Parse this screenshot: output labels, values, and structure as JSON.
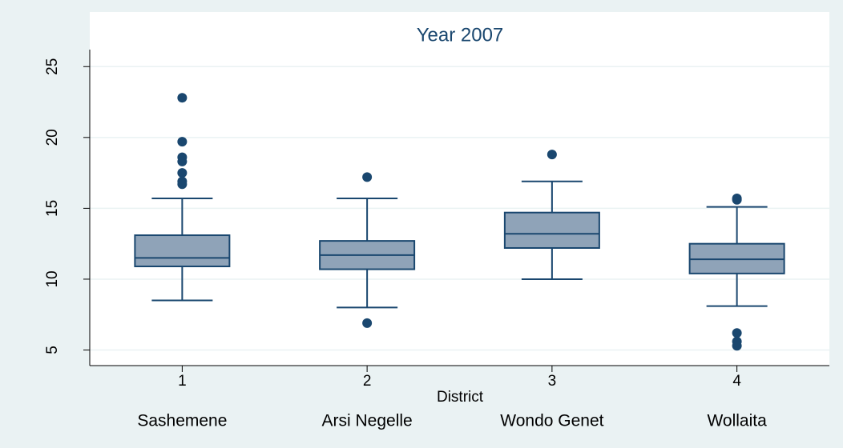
{
  "chart_data": {
    "type": "box",
    "title": "Year 2007",
    "categories": [
      "1",
      "2",
      "3",
      "4"
    ],
    "group_labels": [
      "Sashemene",
      "Arsi Negelle",
      "Wondo Genet",
      "Wollaita"
    ],
    "x_label": "District",
    "color": "#8fa3b8",
    "line_color": "#1a476f",
    "boxes": [
      {
        "low": 8.5,
        "q1": 10.9,
        "median": 11.5,
        "q3": 13.1,
        "high": 15.7,
        "outliers": [
          22.8,
          19.7,
          18.6,
          18.3,
          17.5,
          16.9,
          16.7
        ]
      },
      {
        "low": 8.0,
        "q1": 10.7,
        "median": 11.7,
        "q3": 12.7,
        "high": 15.7,
        "outliers": [
          17.2,
          6.9
        ]
      },
      {
        "low": 10.0,
        "q1": 12.2,
        "median": 13.2,
        "q3": 14.7,
        "high": 16.9,
        "outliers": [
          18.8
        ]
      },
      {
        "low": 8.1,
        "q1": 10.4,
        "median": 11.4,
        "q3": 12.5,
        "high": 15.1,
        "outliers": [
          15.7,
          15.6,
          6.2,
          5.6,
          5.3
        ]
      }
    ],
    "ylim": [
      3.9,
      26.2
    ],
    "yticks": [
      5,
      10,
      15,
      20,
      25
    ],
    "grid": true
  }
}
